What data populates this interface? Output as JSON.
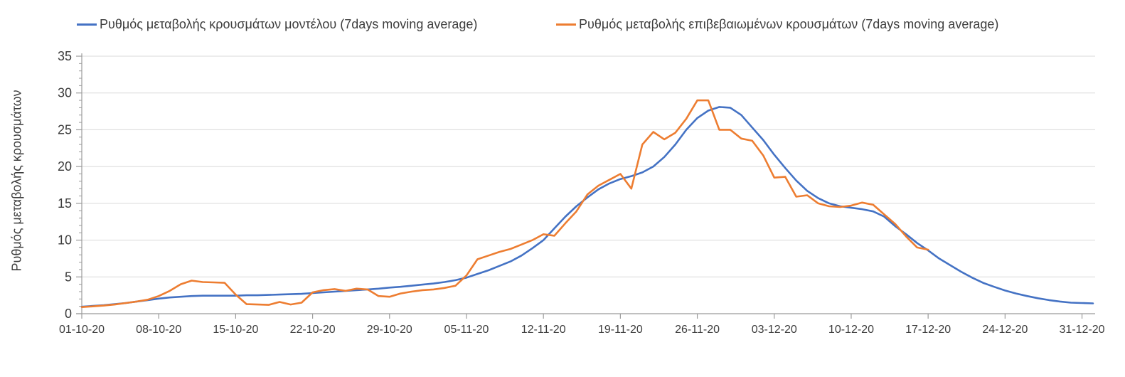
{
  "chart_data": {
    "type": "line",
    "title": "",
    "ylabel": "Ρυθμός μεταβολής κρουσμάτων",
    "xlabel": "",
    "ylim": [
      0,
      35
    ],
    "y_major_ticks": [
      0,
      5,
      10,
      15,
      20,
      25,
      30,
      35
    ],
    "y_minor_step": 1,
    "grid": "horizontal-only",
    "legend_position": "top",
    "x_start_date": "01-10-20",
    "x_tick_every_days": 7,
    "x_tick_labels": [
      "01-10-20",
      "08-10-20",
      "15-10-20",
      "22-10-20",
      "29-10-20",
      "05-11-20",
      "12-11-20",
      "19-11-20",
      "26-11-20",
      "03-12-20",
      "10-12-20",
      "17-12-20",
      "24-12-20",
      "31-12-20"
    ],
    "x_range_days": [
      0,
      93
    ],
    "axis_color": "#9b9b9b",
    "gridline_color": "#d9d9d9",
    "text_color": "#3d3d3d",
    "series": [
      {
        "name": "Ρυθμός μεταβολής κρουσμάτων μοντέλου (7days moving average)",
        "color": "#4472C4",
        "start_day": 0,
        "values": [
          0.95,
          1.05,
          1.15,
          1.3,
          1.45,
          1.65,
          1.85,
          2.05,
          2.2,
          2.3,
          2.4,
          2.45,
          2.45,
          2.45,
          2.45,
          2.5,
          2.5,
          2.55,
          2.6,
          2.65,
          2.7,
          2.8,
          2.9,
          3.0,
          3.1,
          3.2,
          3.3,
          3.4,
          3.55,
          3.65,
          3.8,
          3.95,
          4.1,
          4.3,
          4.55,
          4.9,
          5.4,
          5.9,
          6.5,
          7.1,
          7.9,
          8.9,
          10.0,
          11.6,
          13.2,
          14.6,
          15.8,
          16.9,
          17.7,
          18.3,
          18.7,
          19.2,
          20.0,
          21.3,
          23.0,
          25.0,
          26.6,
          27.6,
          28.1,
          28.0,
          27.0,
          25.3,
          23.6,
          21.6,
          19.8,
          18.1,
          16.7,
          15.7,
          15.0,
          14.6,
          14.4,
          14.2,
          13.9,
          13.2,
          11.9,
          10.8,
          9.6,
          8.6,
          7.5,
          6.6,
          5.7,
          4.9,
          4.2,
          3.65,
          3.15,
          2.75,
          2.4,
          2.1,
          1.85,
          1.65,
          1.5,
          1.45,
          1.4
        ]
      },
      {
        "name": "Ρυθμός μεταβολής επιβεβαιωμένων κρουσμάτων (7days moving average)",
        "color": "#ED7D31",
        "start_day": 0,
        "values": [
          0.9,
          1.0,
          1.1,
          1.25,
          1.45,
          1.65,
          1.9,
          2.4,
          3.1,
          4.0,
          4.5,
          4.3,
          4.25,
          4.2,
          2.6,
          1.3,
          1.25,
          1.2,
          1.6,
          1.25,
          1.5,
          2.9,
          3.2,
          3.35,
          3.1,
          3.4,
          3.3,
          2.4,
          2.3,
          2.75,
          3.0,
          3.2,
          3.3,
          3.5,
          3.8,
          5.2,
          7.4,
          7.9,
          8.4,
          8.8,
          9.4,
          10.0,
          10.8,
          10.6,
          12.3,
          13.9,
          16.2,
          17.4,
          18.2,
          19.0,
          17.0,
          23.0,
          24.7,
          23.7,
          24.6,
          26.5,
          29.0,
          29.0,
          25.0,
          25.0,
          23.8,
          23.5,
          21.5,
          18.5,
          18.6,
          15.9,
          16.1,
          15.0,
          14.6,
          14.5,
          14.7,
          15.1,
          14.8,
          13.5,
          12.2,
          10.5,
          9.0,
          8.7
        ]
      }
    ]
  }
}
